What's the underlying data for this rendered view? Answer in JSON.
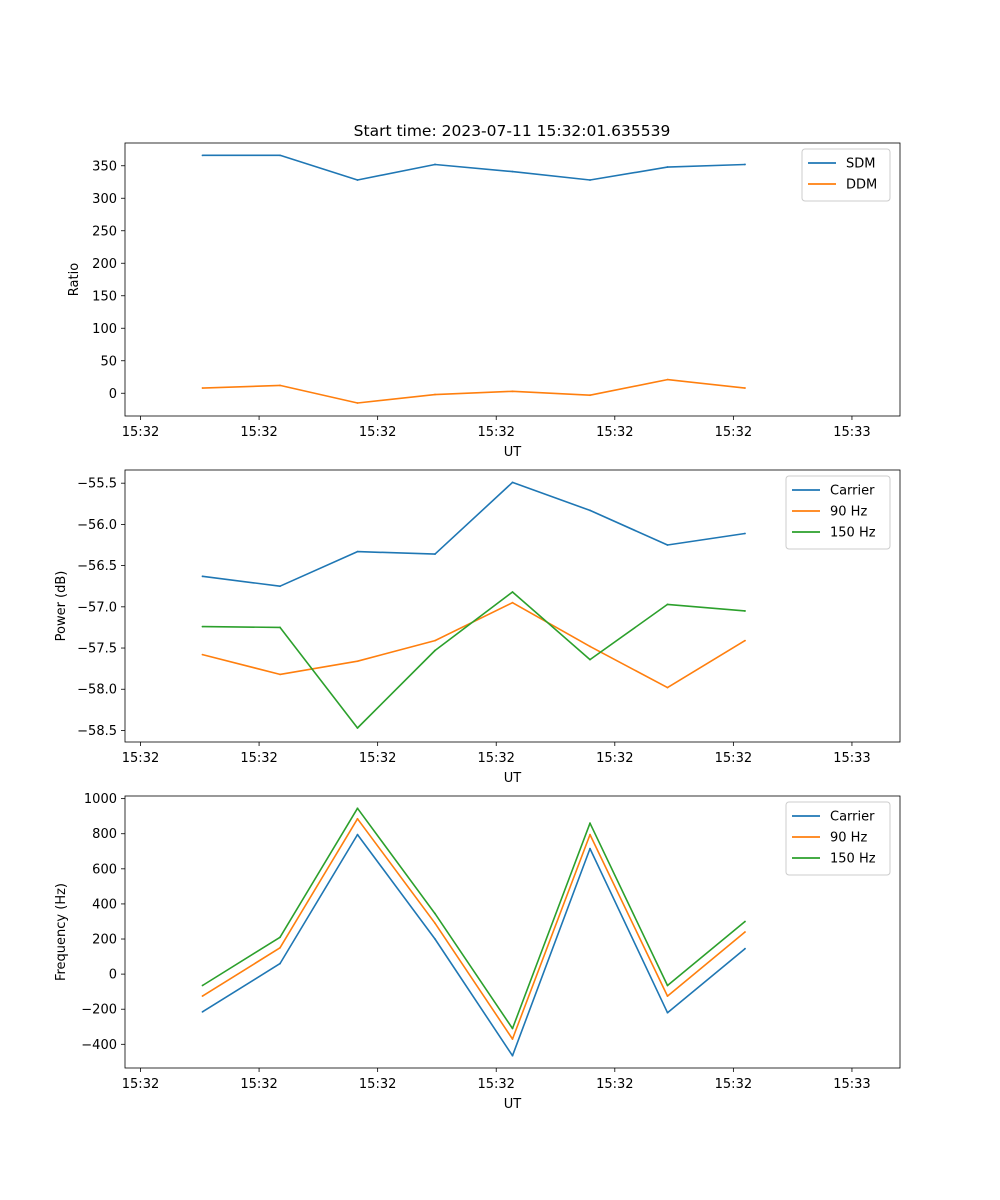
{
  "title": "Start time: 2023-07-11 15:32:01.635539",
  "colors": {
    "blue": "#1f77b4",
    "orange": "#ff7f0e",
    "green": "#2ca02c"
  },
  "chart_data": [
    {
      "type": "line",
      "title": "Start time: 2023-07-11 15:32:01.635539",
      "xlabel": "UT",
      "ylabel": "Ratio",
      "x": [
        1,
        2,
        3,
        4,
        5,
        6,
        7,
        8
      ],
      "xlim": [
        0,
        10
      ],
      "x_ticks": [
        0.2,
        1.73,
        3.26,
        4.79,
        6.32,
        7.85,
        9.38
      ],
      "x_tick_labels": [
        "15:32",
        "15:32",
        "15:32",
        "15:32",
        "15:32",
        "15:32",
        "15:33"
      ],
      "ylim": [
        -35,
        385
      ],
      "y_ticks": [
        0,
        50,
        100,
        150,
        200,
        250,
        300,
        350
      ],
      "y_tick_labels": [
        "0",
        "50",
        "100",
        "150",
        "200",
        "250",
        "300",
        "350"
      ],
      "legend_position": "top-right",
      "series": [
        {
          "name": "SDM",
          "color": "#1f77b4",
          "values": [
            366,
            366,
            328,
            352,
            341,
            328,
            348,
            352
          ]
        },
        {
          "name": "DDM",
          "color": "#ff7f0e",
          "values": [
            8,
            12,
            -15,
            -2,
            3,
            -3,
            21,
            8
          ]
        }
      ]
    },
    {
      "type": "line",
      "title": "",
      "xlabel": "UT",
      "ylabel": "Power (dB)",
      "x": [
        1,
        2,
        3,
        4,
        5,
        6,
        7,
        8
      ],
      "xlim": [
        0,
        10
      ],
      "x_ticks": [
        0.2,
        1.73,
        3.26,
        4.79,
        6.32,
        7.85,
        9.38
      ],
      "x_tick_labels": [
        "15:32",
        "15:32",
        "15:32",
        "15:32",
        "15:32",
        "15:32",
        "15:33"
      ],
      "ylim": [
        -58.64,
        -55.34
      ],
      "y_ticks": [
        -58.5,
        -58.0,
        -57.5,
        -57.0,
        -56.5,
        -56.0,
        -55.5
      ],
      "y_tick_labels": [
        "−58.5",
        "−58.0",
        "−57.5",
        "−57.0",
        "−56.5",
        "−56.0",
        "−55.5"
      ],
      "legend_position": "top-right",
      "series": [
        {
          "name": "Carrier",
          "color": "#1f77b4",
          "values": [
            -56.63,
            -56.75,
            -56.33,
            -56.36,
            -55.49,
            -55.83,
            -56.25,
            -56.11
          ]
        },
        {
          "name": "90 Hz",
          "color": "#ff7f0e",
          "values": [
            -57.58,
            -57.82,
            -57.66,
            -57.41,
            -56.95,
            -57.48,
            -57.98,
            -57.41
          ]
        },
        {
          "name": "150 Hz",
          "color": "#2ca02c",
          "values": [
            -57.24,
            -57.25,
            -58.47,
            -57.53,
            -56.82,
            -57.64,
            -56.97,
            -57.05
          ]
        }
      ]
    },
    {
      "type": "line",
      "title": "",
      "xlabel": "UT",
      "ylabel": "Frequency (Hz)",
      "x": [
        1,
        2,
        3,
        4,
        5,
        6,
        7,
        8
      ],
      "xlim": [
        0,
        10
      ],
      "x_ticks": [
        0.2,
        1.73,
        3.26,
        4.79,
        6.32,
        7.85,
        9.38
      ],
      "x_tick_labels": [
        "15:32",
        "15:32",
        "15:32",
        "15:32",
        "15:32",
        "15:32",
        "15:33"
      ],
      "ylim": [
        -535,
        1015
      ],
      "y_ticks": [
        -400,
        -200,
        0,
        200,
        400,
        600,
        800,
        1000
      ],
      "y_tick_labels": [
        "−400",
        "−200",
        "0",
        "200",
        "400",
        "600",
        "800",
        "1000"
      ],
      "legend_position": "top-right",
      "series": [
        {
          "name": "Carrier",
          "color": "#1f77b4",
          "values": [
            -215,
            60,
            795,
            200,
            -465,
            715,
            -220,
            145
          ]
        },
        {
          "name": "90 Hz",
          "color": "#ff7f0e",
          "values": [
            -125,
            150,
            885,
            290,
            -370,
            795,
            -125,
            240
          ]
        },
        {
          "name": "150 Hz",
          "color": "#2ca02c",
          "values": [
            -65,
            210,
            945,
            345,
            -310,
            860,
            -65,
            300
          ]
        }
      ]
    }
  ]
}
